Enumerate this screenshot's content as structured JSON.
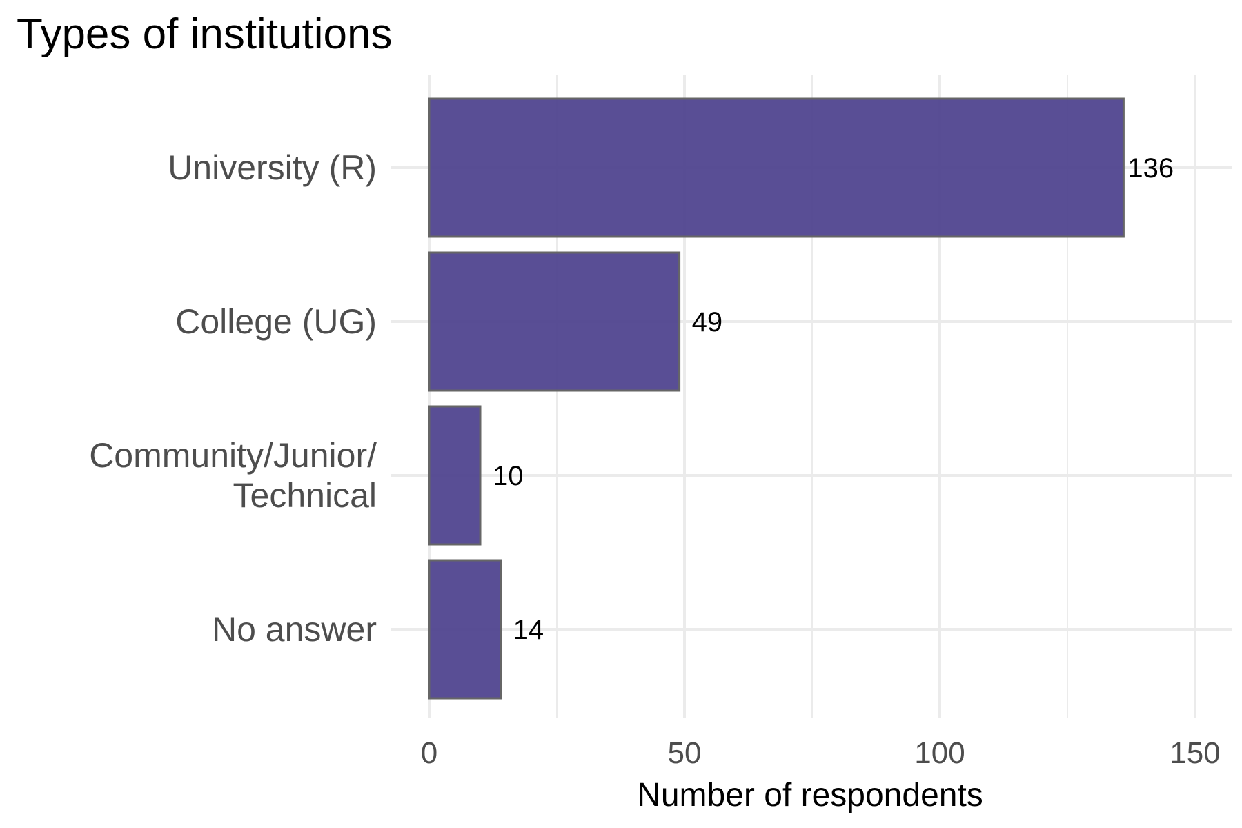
{
  "chart_data": {
    "type": "bar",
    "orientation": "horizontal",
    "title": "Types of institutions",
    "xlabel": "Number of respondents",
    "ylabel": "",
    "categories": [
      [
        "University (R)"
      ],
      [
        "College (UG)"
      ],
      [
        "Community/Junior/",
        "Technical"
      ],
      [
        "No answer"
      ]
    ],
    "values": [
      136,
      49,
      10,
      14
    ],
    "value_labels": [
      "136",
      "49",
      "10",
      "14"
    ],
    "xlim": [
      0,
      150
    ],
    "x_ticks": [
      0,
      50,
      100,
      150
    ],
    "x_tick_labels": [
      "0",
      "50",
      "100",
      "150"
    ],
    "x_minor_ticks": [
      25,
      75,
      125
    ],
    "grid": true,
    "bar_color": "#4b3f8c",
    "bar_border_color": "#666666"
  }
}
